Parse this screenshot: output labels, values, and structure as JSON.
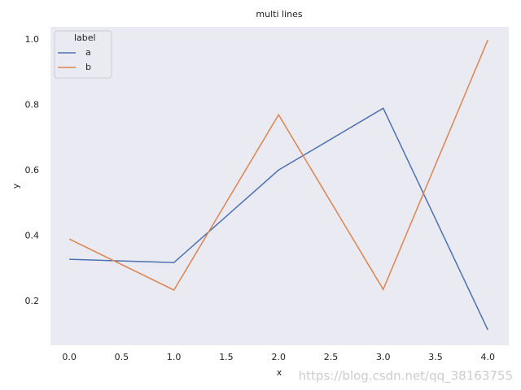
{
  "chart_data": {
    "type": "line",
    "title": "multi lines",
    "xlabel": "x",
    "ylabel": "y",
    "x": [
      0,
      1,
      2,
      3,
      4
    ],
    "series": [
      {
        "name": "a",
        "color": "#4c72b0",
        "values": [
          0.329,
          0.319,
          0.602,
          0.791,
          0.113
        ]
      },
      {
        "name": "b",
        "color": "#dd8452",
        "values": [
          0.391,
          0.235,
          0.771,
          0.237,
          1.0
        ]
      }
    ],
    "legend_title": "label",
    "legend_loc": "upper left",
    "xlim": [
      -0.18,
      4.2
    ],
    "ylim": [
      0.066,
      1.04
    ],
    "xticks": [
      {
        "value": 0,
        "label": "0.0"
      },
      0.5,
      {
        "value": 1,
        "label": "1.0"
      },
      1.5,
      {
        "value": 2,
        "label": "2.0"
      },
      2.5,
      {
        "value": 3,
        "label": "3.0"
      },
      3.5,
      {
        "value": 4,
        "label": "4.0"
      }
    ],
    "yticks": [
      0.2,
      0.4,
      0.6,
      0.8,
      {
        "value": 1,
        "label": "1.0"
      }
    ],
    "grid": false,
    "background": "#eaeaf2",
    "watermark": "https://blog.csdn.net/qq_38163755"
  }
}
